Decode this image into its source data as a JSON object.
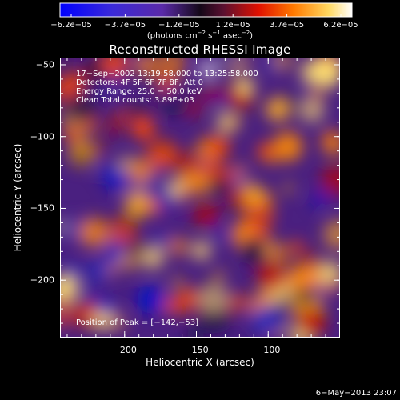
{
  "colorbar": {
    "ticks": [
      "−6.2e−05",
      "−3.7e−05",
      "−1.2e−05",
      "1.2e−05",
      "3.7e−05",
      "6.2e−05"
    ],
    "units_prefix": "(photons cm",
    "units_exp1": "−2",
    "units_mid": " s",
    "units_exp2": "−1",
    "units_mid2": " asec",
    "units_exp3": "−2",
    "units_suffix": ")",
    "colors": {
      "low": "#0000ff",
      "mid_dark": "#000000",
      "mid_purple": "#6a2aa0",
      "orange": "#ff6a00",
      "high": "#ffffff"
    }
  },
  "chart_data": {
    "type": "heatmap",
    "title": "Reconstructed RHESSI Image",
    "xlabel": "Heliocentric X (arcsec)",
    "ylabel": "Heliocentric Y (arcsec)",
    "xlim": [
      -245,
      -50
    ],
    "ylim": [
      -240,
      -45
    ],
    "x_ticks": [
      -200,
      -150,
      -100
    ],
    "y_ticks": [
      -50,
      -100,
      -150,
      -200
    ],
    "x_tick_labels": [
      "−200",
      "−150",
      "−100"
    ],
    "y_tick_labels": [
      "−50",
      "−100",
      "−150",
      "−200"
    ],
    "value_range": [
      -6.2e-05,
      6.2e-05
    ],
    "peak_position": [
      -142,
      -53
    ],
    "annotations": [
      "17−Sep−2002 13:19:58.000 to 13:25:58.000",
      "Detectors: 4F 5F 6F 7F 8F, Att 0",
      "Energy Range: 25.0 − 50.0 keV",
      "Clean     Total counts: 3.89E+03"
    ],
    "peak_label": "Position of Peak = [−142,−53]"
  },
  "footer": {
    "timestamp": "6−May−2013 23:07"
  }
}
